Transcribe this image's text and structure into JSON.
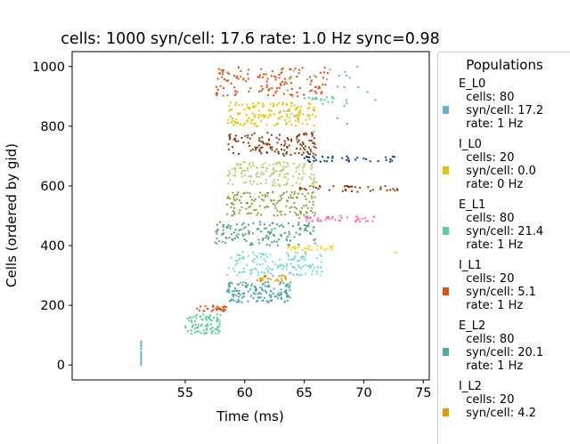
{
  "chart_data": {
    "type": "scatter",
    "title": "cells: 1000   syn/cell: 17.6   rate: 1.0 Hz    sync=0.98",
    "xlabel": "Time (ms)",
    "ylabel": "Cells (ordered by gid)",
    "xlim": [
      45.5,
      75.5
    ],
    "ylim": [
      -50,
      1050
    ],
    "xticks": [
      55,
      60,
      65,
      70,
      75
    ],
    "yticks": [
      0,
      200,
      400,
      600,
      800,
      1000
    ],
    "grid": false,
    "legend_placement": "right, outside plot",
    "legend_title": "Populations",
    "series": [
      {
        "name": "E_L0",
        "color": "#6aaed6",
        "cells": 80,
        "syn_per_cell": 17.2,
        "rate_hz": 1,
        "clusters": [
          {
            "x": [
              51.3,
              51.3
            ],
            "y": [
              0,
              80
            ],
            "n": 40
          },
          {
            "x": [
              63.5,
              71.0
            ],
            "y": [
              780,
              1000
            ],
            "n": 30
          }
        ]
      },
      {
        "name": "I_L0",
        "color": "#e5c300",
        "cells": 20,
        "syn_per_cell": 0.0,
        "rate_hz": 0,
        "clusters": [
          {
            "x": [
              58.5,
              66.0
            ],
            "y": [
              800,
              880
            ],
            "n": 150
          }
        ]
      },
      {
        "name": "E_L1",
        "color": "#5ccf9a",
        "cells": 80,
        "syn_per_cell": 21.4,
        "rate_hz": 1,
        "clusters": [
          {
            "x": [
              55.0,
              58.0
            ],
            "y": [
              105,
              170
            ],
            "n": 90
          },
          {
            "x": [
              65.5,
              67.5
            ],
            "y": [
              880,
              900
            ],
            "n": 15
          }
        ]
      },
      {
        "name": "I_L1",
        "color": "#e0500e",
        "cells": 20,
        "syn_per_cell": 5.1,
        "rate_hz": 1,
        "clusters": [
          {
            "x": [
              56.0,
              58.5
            ],
            "y": [
              180,
              200
            ],
            "n": 30
          },
          {
            "x": [
              57.5,
              67.0
            ],
            "y": [
              900,
              1000
            ],
            "n": 130
          }
        ]
      },
      {
        "name": "E_L2",
        "color": "#4da8a6",
        "cells": 80,
        "syn_per_cell": 20.1,
        "rate_hz": 1,
        "clusters": [
          {
            "x": [
              58.5,
              64.0
            ],
            "y": [
              210,
              280
            ],
            "n": 150
          }
        ]
      },
      {
        "name": "I_L2",
        "color": "#e09a00",
        "cells": 20,
        "syn_per_cell": 4.2,
        "rate_hz": null,
        "clusters": [
          {
            "x": [
              61.0,
              63.5
            ],
            "y": [
              280,
              300
            ],
            "n": 25
          }
        ]
      },
      {
        "name": "",
        "color": "#7dd8d8",
        "clusters": [
          {
            "x": [
              58.5,
              66.5
            ],
            "y": [
              300,
              380
            ],
            "n": 150
          }
        ]
      },
      {
        "name": "",
        "color": "#ffd43b",
        "clusters": [
          {
            "x": [
              63.5,
              67.5
            ],
            "y": [
              385,
              400
            ],
            "n": 40
          },
          {
            "x": [
              72.5,
              72.8
            ],
            "y": [
              375,
              385
            ],
            "n": 2
          }
        ]
      },
      {
        "name": "",
        "color": "#47a878",
        "clusters": [
          {
            "x": [
              57.5,
              66.0
            ],
            "y": [
              400,
              480
            ],
            "n": 140
          }
        ]
      },
      {
        "name": "",
        "color": "#ff6fa6",
        "clusters": [
          {
            "x": [
              64.5,
              71.0
            ],
            "y": [
              480,
              500
            ],
            "n": 45
          }
        ]
      },
      {
        "name": "",
        "color": "#8c9e3a",
        "clusters": [
          {
            "x": [
              58.5,
              66.0
            ],
            "y": [
              500,
              580
            ],
            "n": 140
          }
        ]
      },
      {
        "name": "",
        "color": "#8b3a0f",
        "clusters": [
          {
            "x": [
              64.0,
              73.0
            ],
            "y": [
              580,
              600
            ],
            "n": 40
          },
          {
            "x": [
              58.5,
              66.0
            ],
            "y": [
              700,
              780
            ],
            "n": 130
          }
        ]
      },
      {
        "name": "",
        "color": "#b5d16b",
        "clusters": [
          {
            "x": [
              58.5,
              66.0
            ],
            "y": [
              600,
              680
            ],
            "n": 150
          }
        ]
      },
      {
        "name": "",
        "color": "#0a3d78",
        "clusters": [
          {
            "x": [
              65.0,
              73.0
            ],
            "y": [
              680,
              700
            ],
            "n": 40
          }
        ]
      }
    ]
  },
  "legend": {
    "title": "Populations",
    "items": [
      {
        "name": "E_L0",
        "color": "#6aaed6",
        "cells": "  cells: 80",
        "syn": "  syn/cell: 17.2",
        "rate": "  rate: 1 Hz"
      },
      {
        "name": "I_L0",
        "color": "#e5c300",
        "cells": "  cells: 20",
        "syn": "  syn/cell: 0.0",
        "rate": "  rate: 0 Hz"
      },
      {
        "name": "E_L1",
        "color": "#5ccf9a",
        "cells": "  cells: 80",
        "syn": "  syn/cell: 21.4",
        "rate": "  rate: 1 Hz"
      },
      {
        "name": "I_L1",
        "color": "#e0500e",
        "cells": "  cells: 20",
        "syn": "  syn/cell: 5.1",
        "rate": "  rate: 1 Hz"
      },
      {
        "name": "E_L2",
        "color": "#4da8a6",
        "cells": "  cells: 80",
        "syn": "  syn/cell: 20.1",
        "rate": "  rate: 1 Hz"
      },
      {
        "name": "I_L2",
        "color": "#e09a00",
        "cells": "  cells: 20",
        "syn": "  syn/cell: 4.2",
        "rate": ""
      }
    ]
  }
}
